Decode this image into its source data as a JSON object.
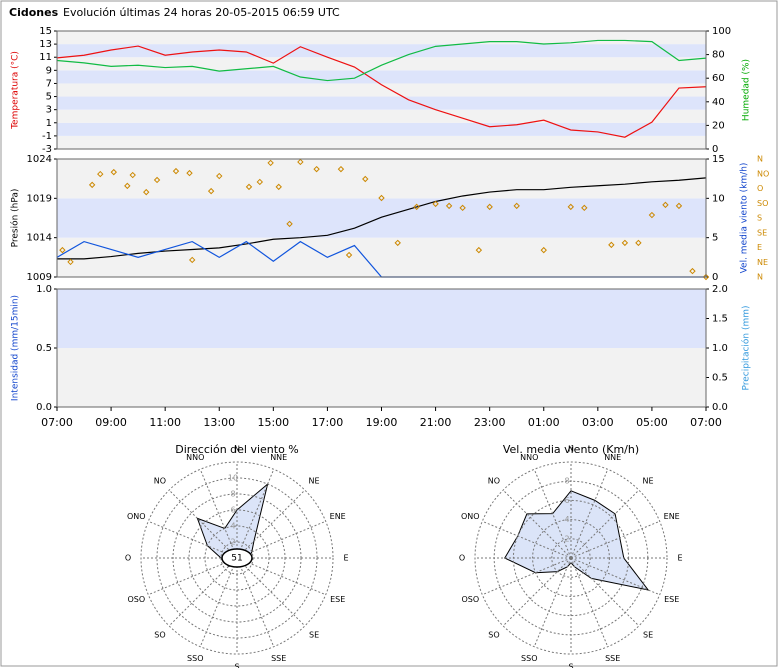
{
  "header": {
    "station": "Cidones",
    "title": "Evolución últimas 24 horas 20-05-2015 06:59 UTC"
  },
  "chart_data": [
    {
      "type": "line",
      "ylabel": "Temperatura (°C)",
      "y2label": "Humedad (%)",
      "ylabel_color": "#dd0000",
      "y2label_color": "#00aa00",
      "band_colors": [
        "#f2f2f2",
        "#dde4fb"
      ],
      "xlim": [
        0,
        24
      ],
      "x": [
        0,
        1,
        2,
        3,
        4,
        5,
        6,
        7,
        8,
        9,
        10,
        11,
        12,
        13,
        14,
        15,
        16,
        17,
        18,
        19,
        20,
        21,
        22,
        23,
        24
      ],
      "ylim": [
        -3,
        15
      ],
      "yticks": [
        -3,
        -1,
        1,
        3,
        5,
        7,
        9,
        11,
        13,
        15
      ],
      "y2lim": [
        0,
        100
      ],
      "y2ticks": [
        0,
        20,
        40,
        60,
        80,
        100
      ],
      "series": [
        {
          "color": "#ee1111",
          "values": [
            10.9,
            11.3,
            12.1,
            12.7,
            11.3,
            11.8,
            12.1,
            11.8,
            10.1,
            12.6,
            11,
            9.5,
            6.8,
            4.5,
            3,
            1.7,
            0.4,
            0.7,
            1.4,
            -0.1,
            -0.4,
            -1.2,
            1.1,
            6.3,
            6.5
          ]
        },
        {
          "color": "#11bb44",
          "axis": "y2",
          "values": [
            75,
            73,
            70,
            71,
            69,
            70,
            66,
            68,
            70,
            61,
            58,
            60,
            71,
            80,
            87,
            89,
            91,
            91,
            89,
            90,
            92,
            92,
            91,
            75,
            77
          ]
        }
      ]
    },
    {
      "type": "line",
      "ylabel": "Presión (hPa)",
      "y2label": "Vel. media viento (km/h)",
      "ylabel_color": "#000000",
      "y2label_color": "#1144cc",
      "y3_color": "#cc8800",
      "band_colors": [
        "#f2f2f2",
        "#dde4fb",
        "#f2f2f2"
      ],
      "xlim": [
        0,
        24
      ],
      "x": [
        0,
        1,
        2,
        3,
        4,
        5,
        6,
        7,
        8,
        9,
        10,
        11,
        12,
        13,
        14,
        15,
        16,
        17,
        18,
        19,
        20,
        21,
        22,
        23,
        24
      ],
      "ylim": [
        1009,
        1024
      ],
      "yticks": [
        1009,
        1014,
        1019,
        1024
      ],
      "y2lim": [
        0,
        15
      ],
      "y2ticks": [
        0,
        5,
        10,
        15
      ],
      "y3lim": [
        0,
        360
      ],
      "y3ticks": [
        {
          "value": 0,
          "label": "N"
        },
        {
          "value": 45,
          "label": "NE"
        },
        {
          "value": 90,
          "label": "E"
        },
        {
          "value": 135,
          "label": "SE"
        },
        {
          "value": 180,
          "label": "S"
        },
        {
          "value": 225,
          "label": "SO"
        },
        {
          "value": 270,
          "label": "O"
        },
        {
          "value": 315,
          "label": "NO"
        },
        {
          "value": 360,
          "label": "N"
        }
      ],
      "series": [
        {
          "color": "#000000",
          "values": [
            1011.3,
            1011.3,
            1011.6,
            1012.0,
            1012.3,
            1012.5,
            1012.7,
            1013.2,
            1013.8,
            1014.0,
            1014.3,
            1015.2,
            1016.6,
            1017.6,
            1018.6,
            1019.3,
            1019.8,
            1020.1,
            1020.1,
            1020.4,
            1020.6,
            1020.8,
            1021.1,
            1021.3,
            1021.6
          ]
        },
        {
          "color": "#1155dd",
          "axis": "y2",
          "values": [
            2.5,
            4.5,
            3.5,
            2.5,
            3.5,
            4.5,
            2.5,
            4.5,
            2,
            4.5,
            2.5,
            4,
            0,
            0,
            0,
            0,
            0,
            0,
            0,
            0,
            0,
            0,
            0,
            0,
            0
          ]
        },
        {
          "type": "scatter",
          "color": "#cc8800",
          "axis": "y3",
          "x": [
            0.2,
            0.5,
            1.3,
            1.6,
            2.1,
            2.6,
            2.8,
            3.3,
            3.7,
            4.4,
            4.9,
            5.0,
            5.7,
            6.0,
            7.1,
            7.5,
            7.9,
            8.2,
            8.6,
            9.0,
            9.6,
            10.5,
            10.8,
            11.4,
            12.0,
            12.6,
            13.3,
            14.0,
            14.5,
            15.0,
            15.6,
            16.0,
            17.0,
            18.0,
            19.0,
            19.5,
            20.5,
            21.0,
            21.5,
            22.0,
            22.5,
            23.0,
            23.5,
            24.0
          ],
          "values": [
            82,
            46,
            281,
            314,
            320,
            278,
            311,
            259,
            296,
            323,
            317,
            52,
            262,
            308,
            275,
            290,
            348,
            275,
            162,
            351,
            329,
            329,
            67,
            299,
            241,
            104,
            214,
            223,
            217,
            211,
            82,
            214,
            217,
            82,
            214,
            211,
            98,
            104,
            104,
            189,
            220,
            217,
            18,
            0
          ]
        }
      ]
    },
    {
      "type": "line",
      "ylabel": "Intensidad (mm/15min)",
      "y2label": "Precipitación (mm)",
      "ylabel_color": "#1144cc",
      "y2label_color": "#3399dd",
      "band_colors": [
        "#dde4fb",
        "#f2f2f2"
      ],
      "xlim": [
        0,
        24
      ],
      "xticks": [
        {
          "value": 0,
          "label": "07:00"
        },
        {
          "value": 2,
          "label": "09:00"
        },
        {
          "value": 4,
          "label": "11:00"
        },
        {
          "value": 6,
          "label": "13:00"
        },
        {
          "value": 8,
          "label": "15:00"
        },
        {
          "value": 10,
          "label": "17:00"
        },
        {
          "value": 12,
          "label": "19:00"
        },
        {
          "value": 14,
          "label": "21:00"
        },
        {
          "value": 16,
          "label": "23:00"
        },
        {
          "value": 18,
          "label": "01:00"
        },
        {
          "value": 20,
          "label": "03:00"
        },
        {
          "value": 22,
          "label": "05:00"
        },
        {
          "value": 24,
          "label": "07:00"
        }
      ],
      "ylim": [
        0,
        1
      ],
      "yticks": [
        {
          "value": 0,
          "label": "0.0"
        },
        {
          "value": 0.5,
          "label": "0.5"
        },
        {
          "value": 1,
          "label": "1.0"
        }
      ],
      "y2lim": [
        0,
        2
      ],
      "y2ticks": [
        {
          "value": 0,
          "label": "0.0"
        },
        {
          "value": 0.5,
          "label": "0.5"
        },
        {
          "value": 1,
          "label": "1.0"
        },
        {
          "value": 1.5,
          "label": "1.5"
        },
        {
          "value": 2,
          "label": "2.0"
        }
      ]
    },
    {
      "type": "polar",
      "title": "Dirección del viento %",
      "calm": 51,
      "categories": [
        "N",
        "NNE",
        "NE",
        "ENE",
        "E",
        "ESE",
        "SE",
        "SSE",
        "S",
        "SSO",
        "SO",
        "OSO",
        "O",
        "ONO",
        "NO",
        "NNO"
      ],
      "values": [
        6,
        10,
        3,
        2,
        1.5,
        1,
        1,
        1,
        1,
        1,
        1.5,
        1.5,
        2,
        4,
        7,
        4
      ],
      "color": "#dbe4f8",
      "rlim": [
        0,
        12
      ],
      "rticks": [
        2,
        4,
        6,
        8,
        10
      ]
    },
    {
      "type": "polar",
      "title": "Vel. media viento (Km/h)",
      "categories": [
        "N",
        "NNE",
        "NE",
        "ENE",
        "E",
        "ESE",
        "SE",
        "SSE",
        "S",
        "SSO",
        "SO",
        "OSO",
        "O",
        "ONO",
        "NO",
        "NNO"
      ],
      "values": [
        7,
        6.5,
        6.5,
        5.5,
        5.5,
        8.7,
        3,
        1,
        0.5,
        1,
        2,
        4,
        6.9,
        6,
        6.5,
        5
      ],
      "color": "#dbe4f8",
      "rlim": [
        0,
        10
      ],
      "rticks": [
        2,
        4,
        6,
        8
      ]
    }
  ]
}
